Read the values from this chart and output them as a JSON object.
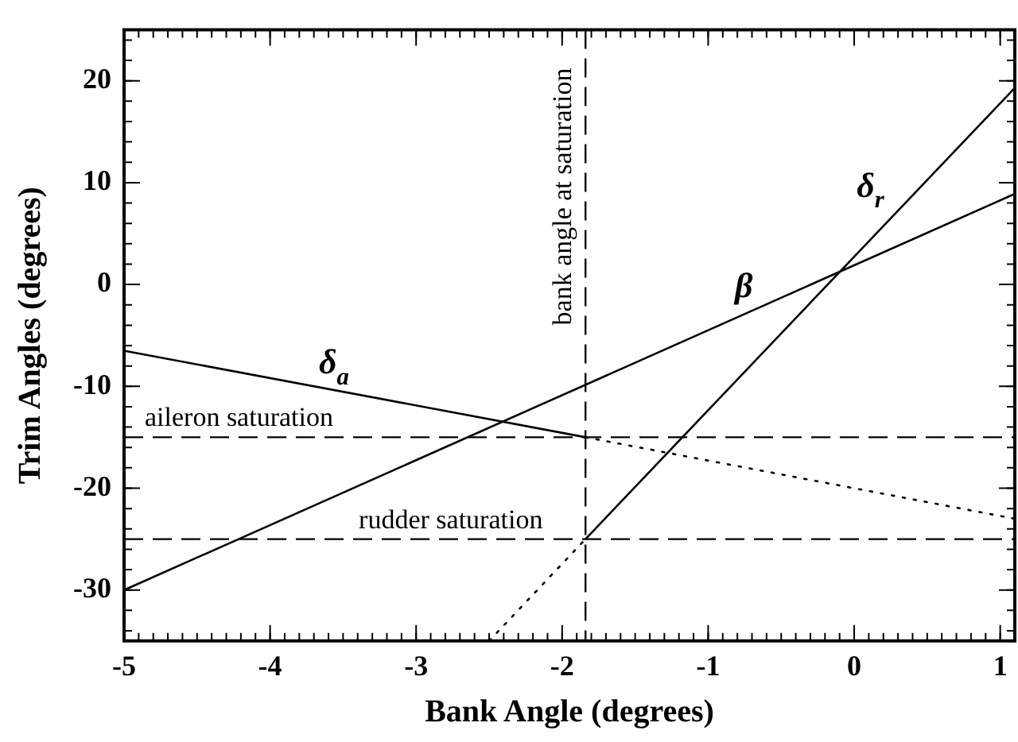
{
  "chart_data": {
    "type": "line",
    "xlabel": "Bank Angle (degrees)",
    "ylabel": "Trim Angles (degrees)",
    "xlim": [
      -5,
      1.1
    ],
    "xticks": [
      -5,
      -4,
      -3,
      -2,
      -1,
      0,
      1
    ],
    "ylim": [
      -35,
      25
    ],
    "yticks": [
      -30,
      -20,
      -10,
      0,
      10,
      20
    ],
    "grid": false,
    "legend": false,
    "marker": "none",
    "series": [
      {
        "name": "δ$_{a}$",
        "color": "#000000",
        "x": [
          -5,
          -1.84
        ],
        "values": [
          -6.5,
          -15
        ],
        "line_style": "solid"
      },
      {
        "name": "β",
        "color": "#000000",
        "x": [
          -5,
          1.1
        ],
        "values": [
          -30,
          8.9
        ],
        "line_style": "solid"
      },
      {
        "name": "δ$_{r}$",
        "color": "#000000",
        "x": [
          -1.84,
          1.1
        ],
        "values": [
          -25,
          19.3
        ],
        "line_style": "solid"
      },
      {
        "color": "#000000",
        "x": [
          -1.84,
          1.1
        ],
        "values": [
          -15,
          -23
        ],
        "line_style": "dotted"
      },
      {
        "color": "#000000",
        "x": [
          -2.5,
          -1.84
        ],
        "values": [
          -35,
          -25
        ],
        "line_style": "dotted"
      }
    ],
    "ref_lines": [
      {
        "axis": "y",
        "value": -15,
        "label": "aileron saturation",
        "line_style": "dashed"
      },
      {
        "axis": "y",
        "value": -25,
        "label": "rudder saturation",
        "line_style": "dashed"
      },
      {
        "axis": "x",
        "value": -1.84,
        "label": "bank angle at saturation",
        "line_style": "dashed"
      }
    ]
  }
}
